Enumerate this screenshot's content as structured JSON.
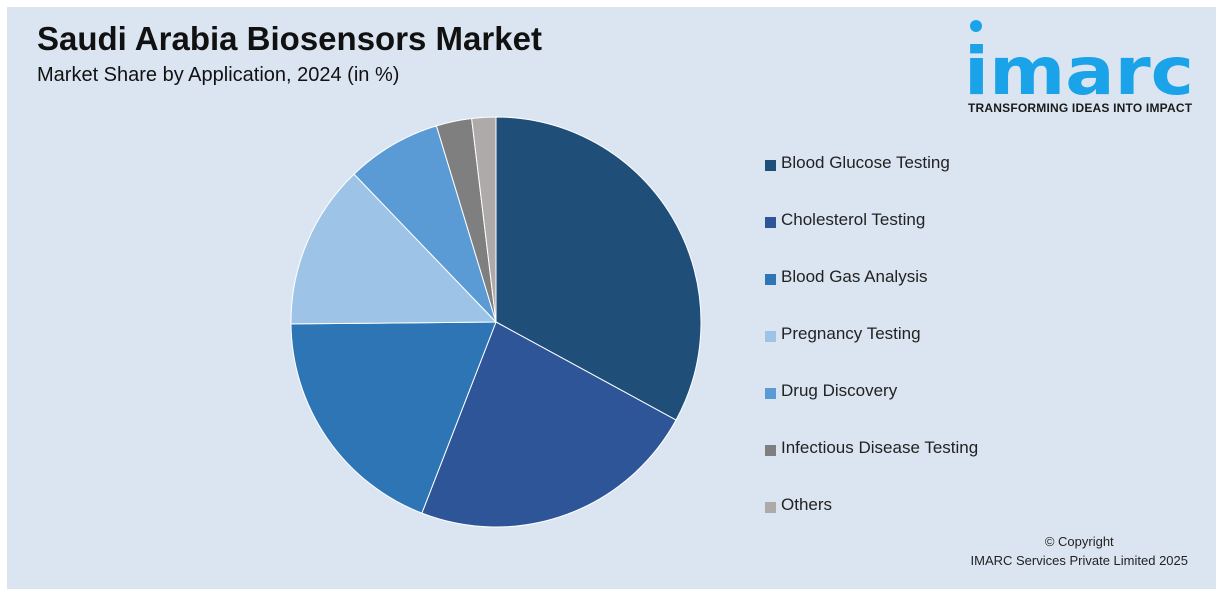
{
  "header": {
    "title": "Saudi Arabia Biosensors Market",
    "subtitle": "Market Share by Application, 2024 (in %)"
  },
  "logo": {
    "text": "imarc",
    "tagline": "TRANSFORMING IDEAS INTO IMPACT",
    "color": "#1aa3e8"
  },
  "footer": {
    "copyright_line1": "© Copyright",
    "copyright_line2": "IMARC Services Private Limited 2025"
  },
  "chart_data": {
    "type": "pie",
    "title": "Saudi Arabia Biosensors Market",
    "subtitle": "Market Share by Application, 2024 (in %)",
    "categories": [
      "Blood Glucose Testing",
      "Cholesterol Testing",
      "Blood Gas Analysis",
      "Pregnancy Testing",
      "Drug Discovery",
      "Infectious Disease Testing",
      "Others"
    ],
    "values": [
      33,
      23,
      19,
      13,
      7.5,
      2.8,
      1.9
    ],
    "colors": [
      "#1f4e79",
      "#2e5597",
      "#2e75b6",
      "#9dc3e6",
      "#5b9bd5",
      "#7f7f7f",
      "#aeaaaa"
    ],
    "legend_position": "right",
    "start_angle": "12 o'clock, clockwise"
  }
}
